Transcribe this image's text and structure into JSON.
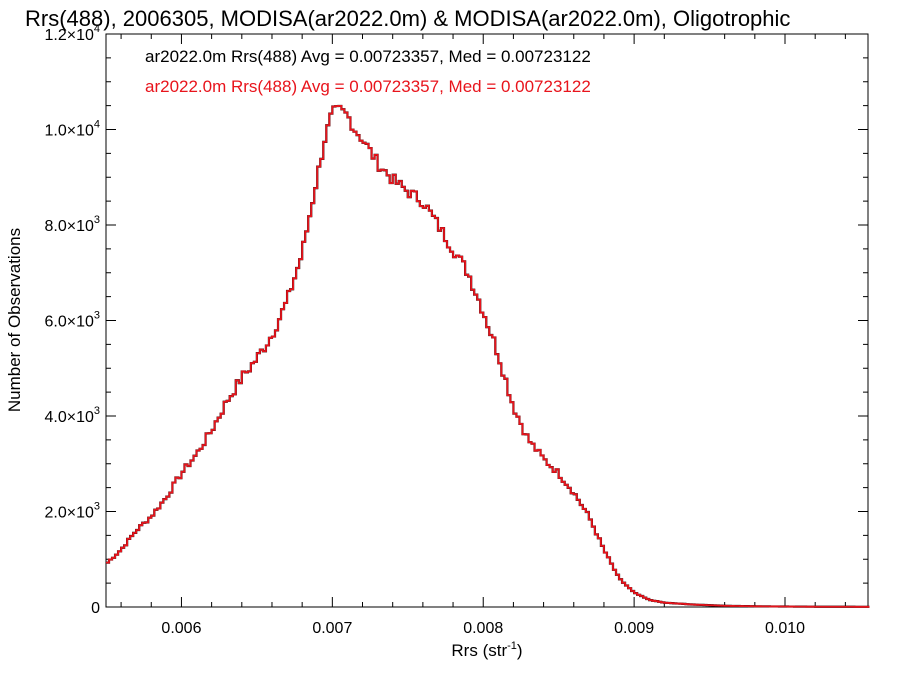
{
  "chart_data": {
    "type": "histogram",
    "title": "Rrs(488), 2006305, MODISA(ar2022.0m) & MODISA(ar2022.0m), Oligotrophic",
    "xlabel": "Rrs (str",
    "xlabel_sup": "-1",
    "xlabel_close": ")",
    "ylabel": "Number of Observations",
    "xlim": [
      0.0055,
      0.01055
    ],
    "ylim": [
      0,
      12000
    ],
    "x_ticks": [
      {
        "value": 0.006,
        "label": "0.006"
      },
      {
        "value": 0.007,
        "label": "0.007"
      },
      {
        "value": 0.008,
        "label": "0.008"
      },
      {
        "value": 0.009,
        "label": "0.009"
      },
      {
        "value": 0.01,
        "label": "0.010"
      }
    ],
    "x_minor_step": 0.0002,
    "y_ticks": [
      {
        "value": 0,
        "mant": "0",
        "exp": ""
      },
      {
        "value": 2000,
        "mant": "2.0×10",
        "exp": "3"
      },
      {
        "value": 4000,
        "mant": "4.0×10",
        "exp": "3"
      },
      {
        "value": 6000,
        "mant": "6.0×10",
        "exp": "3"
      },
      {
        "value": 8000,
        "mant": "8.0×10",
        "exp": "3"
      },
      {
        "value": 10000,
        "mant": "1.0×10",
        "exp": "4"
      },
      {
        "value": 12000,
        "mant": "1.2×10",
        "exp": "4"
      }
    ],
    "y_minor_step": 500,
    "annotations": [
      {
        "text": "ar2022.0m Rrs(488) Avg = 0.00723357, Med = 0.00723122",
        "color": "#000000"
      },
      {
        "text": "ar2022.0m Rrs(488) Avg = 0.00723357, Med = 0.00723122",
        "color": "#e8141c"
      }
    ],
    "series": [
      {
        "color_under": "#000000",
        "color": "#e8141c",
        "bin_width": 2e-05,
        "points": [
          [
            0.0055,
            900
          ],
          [
            0.0056,
            1200
          ],
          [
            0.0057,
            1600
          ],
          [
            0.0058,
            1900
          ],
          [
            0.0059,
            2300
          ],
          [
            0.006,
            2800
          ],
          [
            0.0061,
            3200
          ],
          [
            0.0062,
            3700
          ],
          [
            0.0063,
            4300
          ],
          [
            0.0064,
            4800
          ],
          [
            0.0065,
            5200
          ],
          [
            0.0066,
            5700
          ],
          [
            0.0067,
            6400
          ],
          [
            0.0068,
            7400
          ],
          [
            0.0069,
            9000
          ],
          [
            0.00695,
            9800
          ],
          [
            0.007,
            10350
          ],
          [
            0.00705,
            10400
          ],
          [
            0.0071,
            10300
          ],
          [
            0.00715,
            10000
          ],
          [
            0.0072,
            9800
          ],
          [
            0.0073,
            9300
          ],
          [
            0.0074,
            8950
          ],
          [
            0.0075,
            8700
          ],
          [
            0.0076,
            8500
          ],
          [
            0.0077,
            8000
          ],
          [
            0.0078,
            7500
          ],
          [
            0.0079,
            7000
          ],
          [
            0.008,
            6200
          ],
          [
            0.0081,
            5300
          ],
          [
            0.0082,
            4200
          ],
          [
            0.0083,
            3500
          ],
          [
            0.0084,
            3100
          ],
          [
            0.0085,
            2800
          ],
          [
            0.0086,
            2400
          ],
          [
            0.0087,
            1900
          ],
          [
            0.0088,
            1200
          ],
          [
            0.0089,
            600
          ],
          [
            0.009,
            300
          ],
          [
            0.0091,
            150
          ],
          [
            0.0092,
            90
          ],
          [
            0.0094,
            50
          ],
          [
            0.0096,
            25
          ],
          [
            0.0098,
            15
          ],
          [
            0.01,
            10
          ],
          [
            0.0102,
            6
          ],
          [
            0.01055,
            4
          ]
        ]
      }
    ]
  }
}
